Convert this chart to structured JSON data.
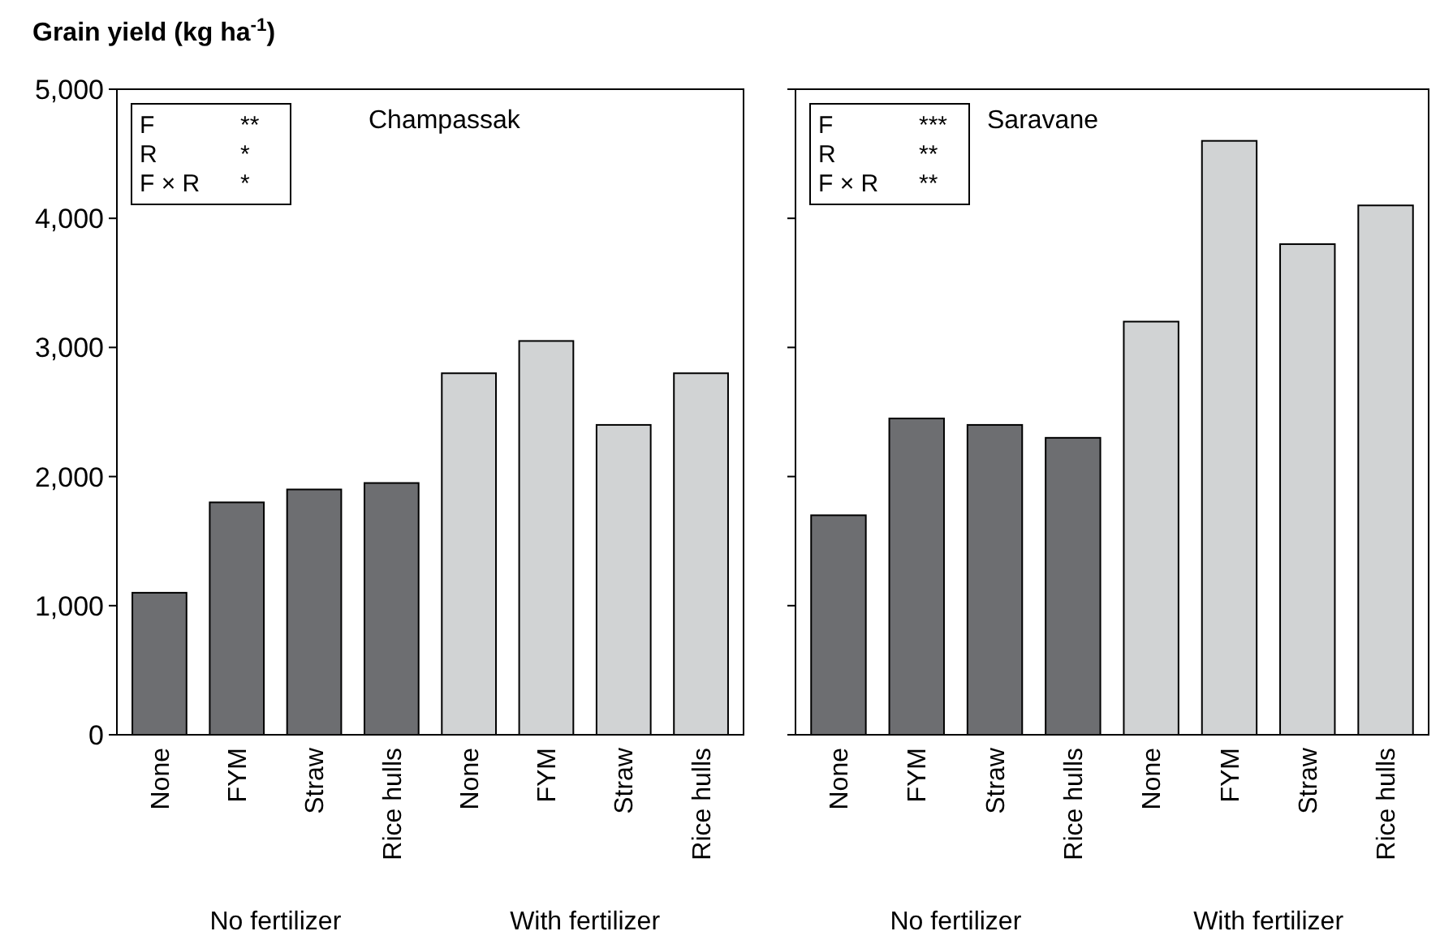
{
  "chart_data": [
    {
      "type": "bar",
      "ylabel": "Grain yield (kg ha$^{-1}$)",
      "title": "Champassak",
      "categories": [
        "None",
        "FYM",
        "Straw",
        "Rice hulls",
        "None",
        "FYM",
        "Straw",
        "Rice hulls"
      ],
      "values": [
        1100,
        1800,
        1900,
        1950,
        2800,
        3050,
        2400,
        2800
      ],
      "colors": [
        "#6d6e71",
        "#6d6e71",
        "#6d6e71",
        "#6d6e71",
        "#d1d3d4",
        "#d1d3d4",
        "#d1d3d4",
        "#d1d3d4"
      ],
      "ylim": [
        0,
        5000
      ],
      "yticks": [
        {
          "value": 0,
          "label": "0"
        },
        {
          "value": 1000,
          "label": "1,000"
        },
        {
          "value": 2000,
          "label": "2,000"
        },
        {
          "value": 3000,
          "label": "3,000"
        },
        {
          "value": 4000,
          "label": "4,000"
        },
        {
          "value": 5000,
          "label": "5,000"
        }
      ],
      "annotations": [
        "F **",
        "R *",
        "F × R *",
        "No fertilizer",
        "With fertilizer"
      ]
    },
    {
      "type": "bar",
      "title": "Saravane",
      "categories": [
        "None",
        "FYM",
        "Straw",
        "Rice hulls",
        "None",
        "FYM",
        "Straw",
        "Rice hulls"
      ],
      "values": [
        1700,
        2450,
        2400,
        2300,
        3200,
        4600,
        3800,
        4100
      ],
      "colors": [
        "#6d6e71",
        "#6d6e71",
        "#6d6e71",
        "#6d6e71",
        "#d1d3d4",
        "#d1d3d4",
        "#d1d3d4",
        "#d1d3d4"
      ],
      "ylim": [
        0,
        5000
      ],
      "yticks": [
        {
          "value": 0,
          "label": null
        },
        {
          "value": 1000,
          "label": null
        },
        {
          "value": 2000,
          "label": null
        },
        {
          "value": 3000,
          "label": null
        },
        {
          "value": 4000,
          "label": null
        },
        {
          "value": 5000,
          "label": null
        }
      ],
      "tick_labels": "x",
      "annotations": [
        "F ***",
        "R **",
        "F × R **",
        "No fertilizer",
        "With fertilizer"
      ]
    }
  ]
}
